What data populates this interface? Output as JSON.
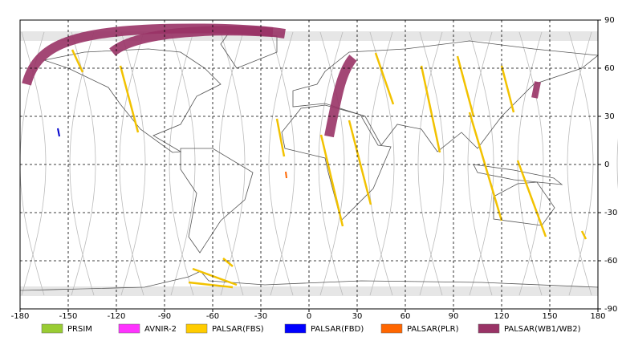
{
  "map": {
    "xlim": [
      -180,
      180
    ],
    "ylim": [
      -90,
      90
    ],
    "xticks": [
      -180,
      -150,
      -120,
      -90,
      -60,
      -30,
      0,
      30,
      60,
      90,
      120,
      150,
      180
    ],
    "yticks": [
      90,
      60,
      30,
      0,
      -30,
      -60,
      -90
    ],
    "grid": true,
    "legend": [
      {
        "name": "PRSIM",
        "color": "#99cc33"
      },
      {
        "name": "AVNIR-2",
        "color": "#ff33ff"
      },
      {
        "name": "PALSAR(FBS)",
        "color": "#ffcc00"
      },
      {
        "name": "PALSAR(FBD)",
        "color": "#0000ff"
      },
      {
        "name": "PALSAR(PLR)",
        "color": "#ff6600"
      },
      {
        "name": "PALSAR(WB1/WB2)",
        "color": "#993366"
      }
    ]
  }
}
